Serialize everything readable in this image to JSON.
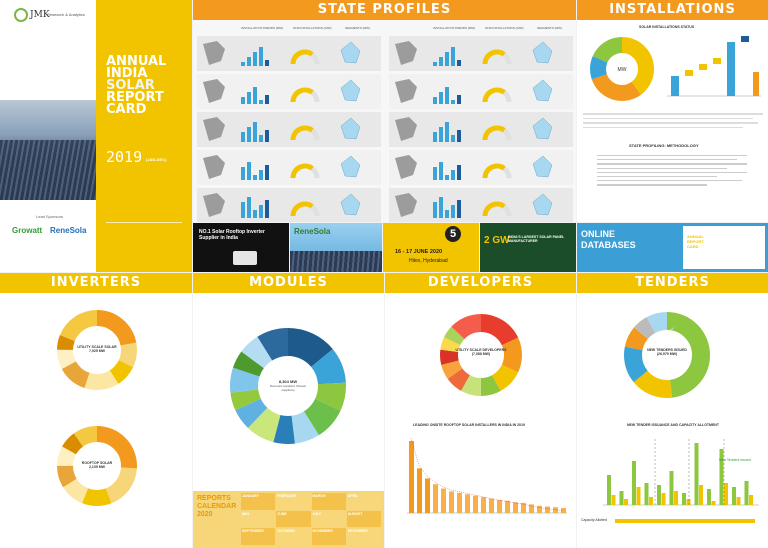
{
  "cover": {
    "brand_short": "JMK",
    "brand_full": "Research & Analytics",
    "title_lines": [
      "ANNUAL",
      "INDIA",
      "SOLAR",
      "REPORT",
      "CARD"
    ],
    "year": "2019",
    "period": "(JAN-DEC)",
    "lead_sponsor_label": "Lead Sponsors",
    "sponsors": [
      "Growatt",
      "ReneSola"
    ]
  },
  "sections": {
    "state_profiles": "STATE PROFILES",
    "installations": "INSTALLATIONS",
    "inverters": "INVERTERS",
    "modules": "MODULES",
    "developers": "DEVELOPERS",
    "tenders": "TENDERS"
  },
  "state_profiles": {
    "col_headers": [
      "INSTALLATION TRENDS (MW)",
      "2019 INSTALLATIONS (MW)",
      "SEGMENTS (MW)"
    ]
  },
  "installations": {
    "chart_title": "SOLAR INSTALLATIONS STATUS",
    "center_label": "MW",
    "methodology_title": "STATE PROFILING: METHODOLOGY"
  },
  "ads": {
    "growatt_headline": "NO.1 Solar Rooftop Inverter Supplier in India",
    "renesola": "ReneSola",
    "expo_date": "16 - 17 JUNE 2020",
    "expo_venue": "Hitex, Hyderabad",
    "expo_number": "5",
    "panel_text": "2 GW",
    "panel_sub": "INDIA'S LARGEST SOLAR PANEL MANUFACTURER",
    "online": "ONLINE",
    "databases": "DATABASES",
    "report_card": "ANNUAL REPORT CARD"
  },
  "inverters": {
    "utility_label": "UTILITY SCALE SOLAR",
    "utility_value": "7,925 MW",
    "rooftop_label": "ROOFTOP SOLAR",
    "rooftop_value": "2,109 MW"
  },
  "modules": {
    "center_value": "8,304 MW",
    "center_sub": "Domestic suppliers (Shown suppliers)",
    "calendar_title": "REPORTS CALENDAR 2020",
    "calendar_quarters": [
      "JANUARY",
      "FEBRUARY",
      "MARCH",
      "APRIL",
      "MAY",
      "JUNE",
      "JULY",
      "AUGUST",
      "SEPTEMBER",
      "OCTOBER",
      "NOVEMBER",
      "DECEMBER"
    ]
  },
  "developers": {
    "center_label": "UTILITY SCALE DEVELOPERS",
    "center_value": "(7,088 MW)",
    "bar_title": "LEADING ONSITE ROOFTOP SOLAR INSTALLERS IN INDIA IN 2019"
  },
  "tenders": {
    "center_label": "NEW TENDERS ISSUED",
    "center_value": "(26,979 MW)",
    "bar_title": "NEW TENDER ISSUANCE AND CAPACITY ALLOTMENT",
    "legend_top": "New Tenders Issued",
    "legend_bottom": "Capacity Allotted"
  },
  "colors": {
    "yellow": "#f2c400",
    "orange": "#f39a1e",
    "green": "#8dc63f",
    "blue": "#3aa3d8",
    "red": "#e83c2c"
  }
}
